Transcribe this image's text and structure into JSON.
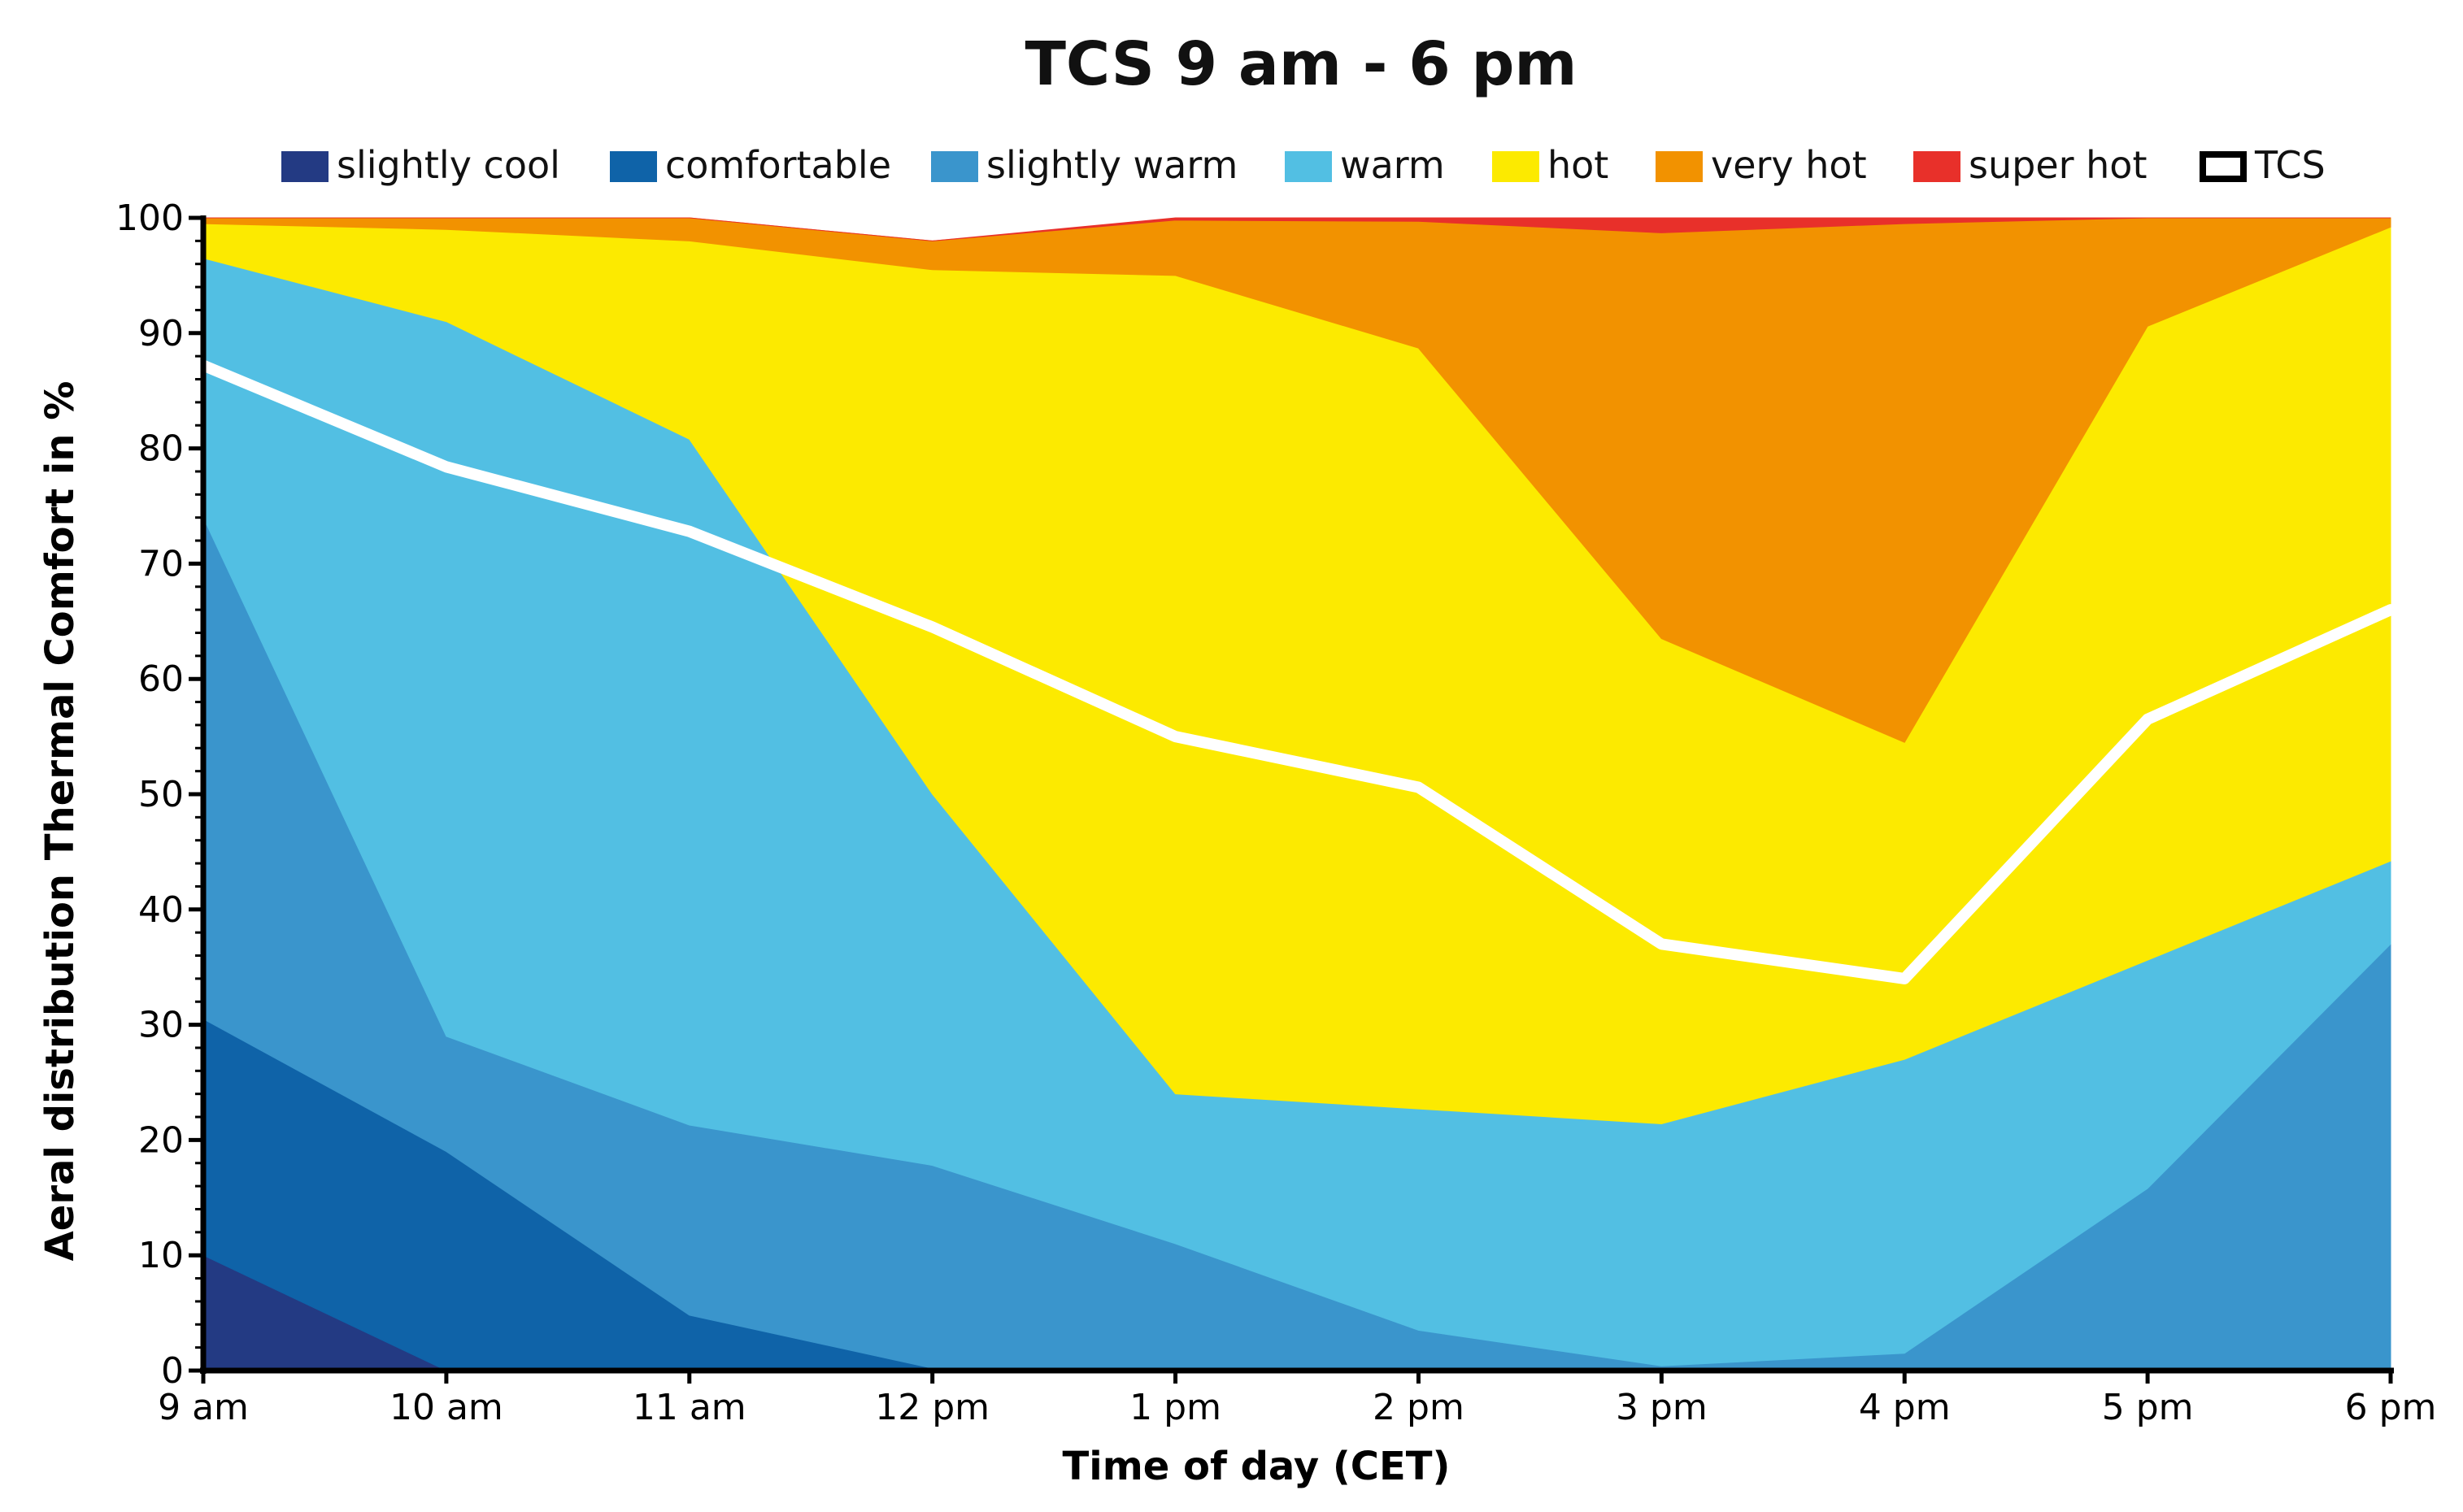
{
  "chart_data": {
    "type": "area",
    "stacked": true,
    "title": "TCS 9 am - 6 pm",
    "xlabel": "Time of day (CET)",
    "ylabel": "Aeral distribution Thermal Comfort in %",
    "ylim": [
      0,
      100
    ],
    "yticks": [
      0,
      10,
      20,
      30,
      40,
      50,
      60,
      70,
      80,
      90,
      100
    ],
    "yticks_label": [
      "0",
      "10",
      "20",
      "30",
      "40",
      "50",
      "60",
      "70",
      "80",
      "90",
      "100"
    ],
    "categories": [
      "9 am",
      "10 am",
      "11 am",
      "12 pm",
      "1 pm",
      "2 pm",
      "3 pm",
      "4 pm",
      "5 pm",
      "6 pm"
    ],
    "series": [
      {
        "name": "slightly cool",
        "color": "#233a83",
        "values": [
          10.0,
          0.0,
          0.0,
          0.0,
          0.0,
          0.0,
          0.0,
          0.0,
          0.0,
          0.0
        ]
      },
      {
        "name": "comfortable",
        "color": "#0f63a8",
        "values": [
          20.5,
          19.0,
          4.8,
          0.2,
          0.0,
          0.0,
          0.0,
          0.0,
          0.0,
          0.0
        ]
      },
      {
        "name": "slightly warm",
        "color": "#3a95cc",
        "values": [
          43.5,
          10.0,
          16.5,
          17.6,
          11.0,
          3.5,
          0.4,
          1.5,
          15.8,
          37.0
        ]
      },
      {
        "name": "warm",
        "color": "#52bfe3",
        "values": [
          22.5,
          62.0,
          59.5,
          32.2,
          13.0,
          19.2,
          21.0,
          25.5,
          19.8,
          7.2
        ]
      },
      {
        "name": "hot",
        "color": "#fcea00",
        "values": [
          3.0,
          8.0,
          17.2,
          45.5,
          71.0,
          66.0,
          42.1,
          27.5,
          55.0,
          55.0
        ]
      },
      {
        "name": "very hot",
        "color": "#f29200",
        "values": [
          0.5,
          1.0,
          2.0,
          2.5,
          4.8,
          11.0,
          35.2,
          45.0,
          9.4,
          0.8
        ]
      },
      {
        "name": "super hot",
        "color": "#e8302a",
        "values": [
          0.0,
          0.0,
          0.0,
          0.0,
          0.2,
          0.3,
          1.3,
          0.5,
          0.0,
          0.0
        ]
      }
    ],
    "line": {
      "name": "TCS",
      "color": "#ffffff",
      "values": [
        87.2,
        78.4,
        72.8,
        64.5,
        55.0,
        50.6,
        37.0,
        34.0,
        56.5,
        66.0
      ]
    },
    "legend": {
      "position": "top",
      "entries": [
        "slightly cool",
        "comfortable",
        "slightly warm",
        "warm",
        "hot",
        "very hot",
        "super hot",
        "TCS"
      ]
    }
  }
}
